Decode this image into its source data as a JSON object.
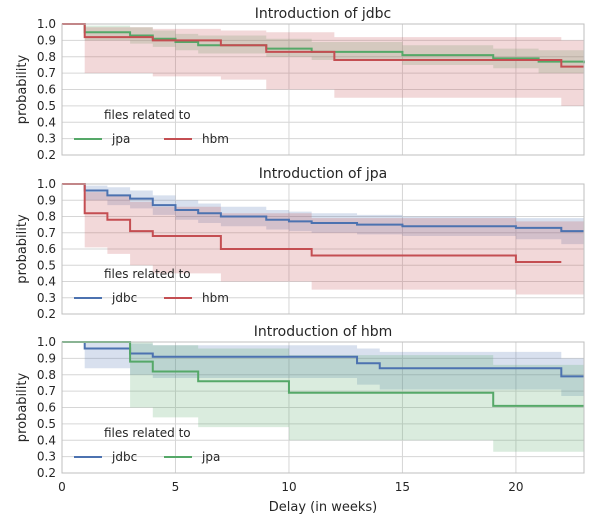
{
  "figure": {
    "xlabel": "Delay (in weeks)",
    "ylabel": "probability",
    "xlim": [
      0,
      23
    ],
    "ylim": [
      0.2,
      1.0
    ],
    "xticks": [
      0,
      5,
      10,
      15,
      20
    ],
    "yticks": [
      0.2,
      0.3,
      0.4,
      0.5,
      0.6,
      0.7,
      0.8,
      0.9,
      1.0
    ],
    "legend_title": "files related to",
    "colors": {
      "jdbc": "#4c72b0",
      "jpa": "#55a868",
      "hbm": "#c44e52"
    },
    "grid": true,
    "style": "seaborn-whitegrid"
  },
  "chart_data": [
    {
      "type": "line",
      "step": true,
      "title": "Introduction of jdbc",
      "legend_placement": "lower-left",
      "series": [
        {
          "name": "jpa",
          "color": "#55a868",
          "x": [
            0,
            1,
            3,
            4,
            5,
            6,
            9,
            11,
            15,
            19,
            21,
            23
          ],
          "y": [
            1.0,
            0.95,
            0.93,
            0.91,
            0.89,
            0.87,
            0.85,
            0.83,
            0.81,
            0.79,
            0.77,
            0.76
          ],
          "ci_lower": [
            1.0,
            0.9,
            0.88,
            0.86,
            0.84,
            0.82,
            0.8,
            0.78,
            0.75,
            0.73,
            0.7,
            0.69
          ],
          "ci_upper": [
            1.0,
            0.99,
            0.98,
            0.96,
            0.94,
            0.93,
            0.91,
            0.89,
            0.87,
            0.85,
            0.84,
            0.83
          ]
        },
        {
          "name": "hbm",
          "color": "#c44e52",
          "x": [
            0,
            1,
            4,
            7,
            9,
            12,
            22,
            23
          ],
          "y": [
            1.0,
            0.92,
            0.9,
            0.87,
            0.83,
            0.78,
            0.74,
            0.74
          ],
          "ci_lower": [
            1.0,
            0.7,
            0.68,
            0.66,
            0.6,
            0.55,
            0.5,
            0.5
          ],
          "ci_upper": [
            1.0,
            0.98,
            0.97,
            0.96,
            0.95,
            0.92,
            0.9,
            0.9
          ]
        }
      ]
    },
    {
      "type": "line",
      "step": true,
      "title": "Introduction of jpa",
      "legend_placement": "lower-left",
      "series": [
        {
          "name": "jdbc",
          "color": "#4c72b0",
          "x": [
            0,
            1,
            2,
            3,
            4,
            5,
            6,
            7,
            9,
            10,
            11,
            13,
            15,
            20,
            22,
            23
          ],
          "y": [
            1.0,
            0.96,
            0.93,
            0.91,
            0.87,
            0.84,
            0.82,
            0.8,
            0.78,
            0.77,
            0.76,
            0.75,
            0.74,
            0.73,
            0.71,
            0.71
          ],
          "ci_lower": [
            1.0,
            0.9,
            0.87,
            0.85,
            0.81,
            0.78,
            0.76,
            0.74,
            0.72,
            0.71,
            0.7,
            0.69,
            0.68,
            0.66,
            0.63,
            0.63
          ],
          "ci_upper": [
            1.0,
            0.99,
            0.98,
            0.96,
            0.93,
            0.9,
            0.88,
            0.86,
            0.84,
            0.83,
            0.82,
            0.81,
            0.8,
            0.79,
            0.79,
            0.79
          ]
        },
        {
          "name": "hbm",
          "color": "#c44e52",
          "x": [
            0,
            1,
            2,
            3,
            4,
            7,
            11,
            20,
            22
          ],
          "y": [
            1.0,
            0.82,
            0.78,
            0.71,
            0.68,
            0.6,
            0.56,
            0.52,
            0.52
          ],
          "ci_lower": [
            1.0,
            0.61,
            0.57,
            0.5,
            0.45,
            0.4,
            0.35,
            0.32,
            0.32
          ],
          "ci_upper": [
            1.0,
            0.95,
            0.93,
            0.89,
            0.86,
            0.82,
            0.79,
            0.77,
            0.77
          ]
        }
      ]
    },
    {
      "type": "line",
      "step": true,
      "title": "Introduction of hbm",
      "legend_placement": "lower-left",
      "series": [
        {
          "name": "jdbc",
          "color": "#4c72b0",
          "x": [
            0,
            1,
            3,
            4,
            13,
            14,
            22,
            23
          ],
          "y": [
            1.0,
            0.96,
            0.93,
            0.91,
            0.87,
            0.84,
            0.79,
            0.79
          ],
          "ci_lower": [
            1.0,
            0.84,
            0.8,
            0.78,
            0.74,
            0.71,
            0.67,
            0.67
          ],
          "ci_upper": [
            1.0,
            1.0,
            0.99,
            0.98,
            0.96,
            0.94,
            0.9,
            0.9
          ]
        },
        {
          "name": "jpa",
          "color": "#55a868",
          "x": [
            0,
            3,
            4,
            6,
            10,
            19,
            23
          ],
          "y": [
            1.0,
            0.88,
            0.82,
            0.76,
            0.69,
            0.61,
            0.61
          ],
          "ci_lower": [
            1.0,
            0.6,
            0.54,
            0.48,
            0.4,
            0.33,
            0.33
          ],
          "ci_upper": [
            1.0,
            1.0,
            0.98,
            0.96,
            0.92,
            0.86,
            0.86
          ]
        }
      ]
    }
  ]
}
